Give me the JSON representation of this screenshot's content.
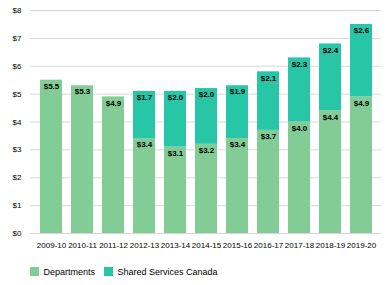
{
  "chart_data": {
    "type": "bar",
    "stacked": true,
    "categories": [
      "2009-10",
      "2010-11",
      "2011-12",
      "2012-13",
      "2013-14",
      "2014-15",
      "2015-16",
      "2016-17",
      "2017-18",
      "2018-19",
      "2019-20"
    ],
    "series": [
      {
        "name": "Departments",
        "color": "#82cc96",
        "values": [
          5.5,
          5.3,
          4.9,
          3.4,
          3.1,
          3.2,
          3.4,
          3.7,
          4.0,
          4.4,
          4.9
        ],
        "value_labels": [
          "$5.5",
          "$5.3",
          "$4.9",
          "$3.4",
          "$3.1",
          "$3.2",
          "$3.4",
          "$3.7",
          "$4.0",
          "$4.4",
          "$4.9"
        ]
      },
      {
        "name": "Shared Services Canada",
        "color": "#26c6a6",
        "values": [
          0.0,
          0.0,
          0.0,
          1.7,
          2.0,
          2.0,
          1.9,
          2.1,
          2.3,
          2.4,
          2.6
        ],
        "value_labels": [
          null,
          null,
          null,
          "$1.7",
          "$2.0",
          "$2.0",
          "$1.9",
          "$2.1",
          "$2.3",
          "$2.4",
          "$2.6"
        ]
      }
    ],
    "ylim": [
      0,
      8
    ],
    "yticks": [
      {
        "value": 0,
        "label": "$0"
      },
      {
        "value": 1,
        "label": "$1"
      },
      {
        "value": 2,
        "label": "$2"
      },
      {
        "value": 3,
        "label": "$3"
      },
      {
        "value": 4,
        "label": "$4"
      },
      {
        "value": 5,
        "label": "$5"
      },
      {
        "value": 6,
        "label": "$6"
      },
      {
        "value": 7,
        "label": "$7"
      },
      {
        "value": 8,
        "label": "$8"
      }
    ],
    "grid": true,
    "data_labels": true,
    "legend": "bottom"
  }
}
